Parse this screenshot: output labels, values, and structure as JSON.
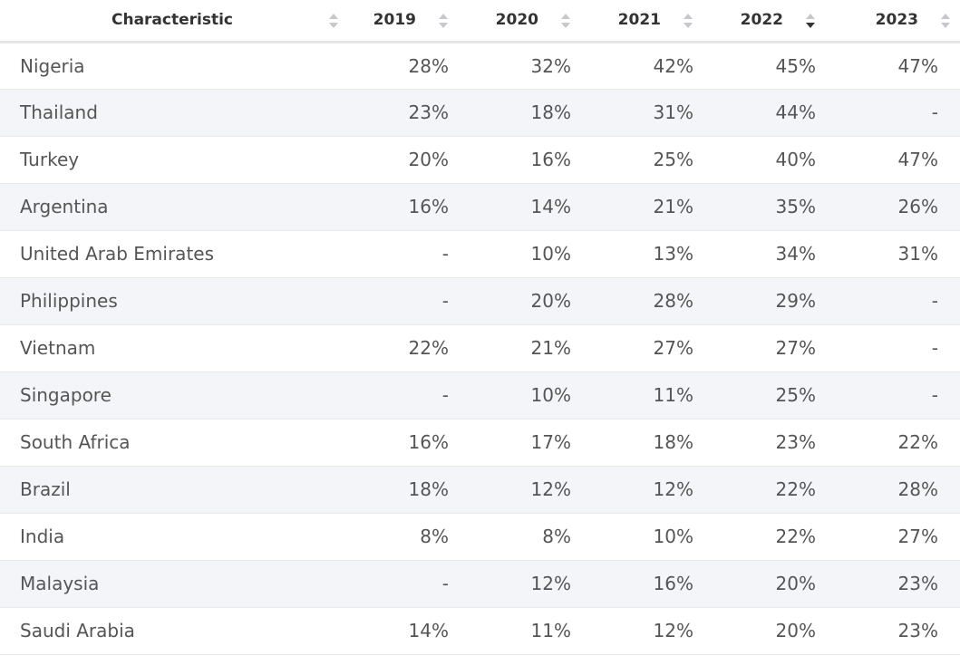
{
  "chart_data": {
    "type": "table",
    "columns": [
      "Characteristic",
      "2019",
      "2020",
      "2021",
      "2022",
      "2023"
    ],
    "sorted_column": "2022",
    "sort_direction": "descending",
    "rows": [
      {
        "country": "Nigeria",
        "values": [
          "28%",
          "32%",
          "42%",
          "45%",
          "47%"
        ]
      },
      {
        "country": "Thailand",
        "values": [
          "23%",
          "18%",
          "31%",
          "44%",
          "-"
        ]
      },
      {
        "country": "Turkey",
        "values": [
          "20%",
          "16%",
          "25%",
          "40%",
          "47%"
        ]
      },
      {
        "country": "Argentina",
        "values": [
          "16%",
          "14%",
          "21%",
          "35%",
          "26%"
        ]
      },
      {
        "country": "United Arab Emirates",
        "values": [
          "-",
          "10%",
          "13%",
          "34%",
          "31%"
        ]
      },
      {
        "country": "Philippines",
        "values": [
          "-",
          "20%",
          "28%",
          "29%",
          "-"
        ]
      },
      {
        "country": "Vietnam",
        "values": [
          "22%",
          "21%",
          "27%",
          "27%",
          "-"
        ]
      },
      {
        "country": "Singapore",
        "values": [
          "-",
          "10%",
          "11%",
          "25%",
          "-"
        ]
      },
      {
        "country": "South Africa",
        "values": [
          "16%",
          "17%",
          "18%",
          "23%",
          "22%"
        ]
      },
      {
        "country": "Brazil",
        "values": [
          "18%",
          "12%",
          "12%",
          "22%",
          "28%"
        ]
      },
      {
        "country": "India",
        "values": [
          "8%",
          "8%",
          "10%",
          "22%",
          "27%"
        ]
      },
      {
        "country": "Malaysia",
        "values": [
          "-",
          "12%",
          "16%",
          "20%",
          "23%"
        ]
      },
      {
        "country": "Saudi Arabia",
        "values": [
          "14%",
          "11%",
          "12%",
          "20%",
          "23%"
        ]
      }
    ]
  },
  "colors": {
    "header_text": "#333333",
    "cell_text": "#555555",
    "stripe": "#f4f5f8",
    "sort_inactive": "#c5c7cc",
    "sort_active": "#333333"
  }
}
